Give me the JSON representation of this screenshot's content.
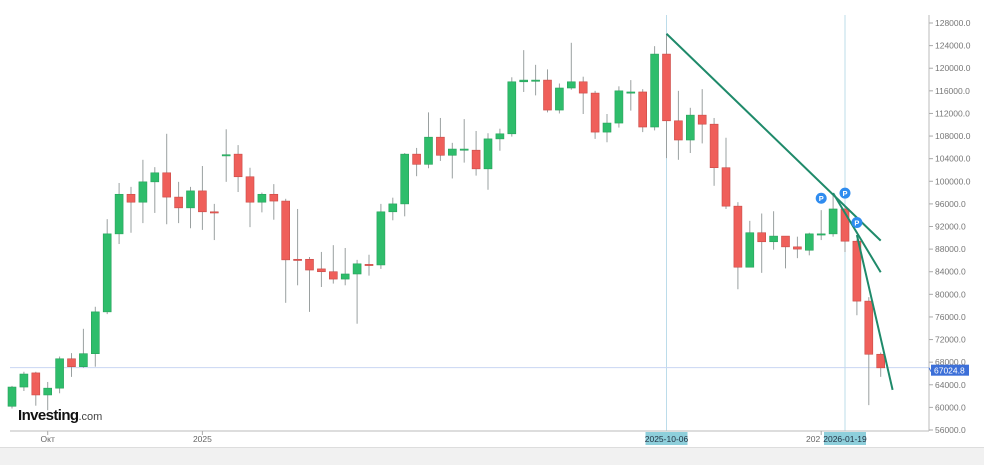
{
  "logo": {
    "brand": "Investing",
    "suffix": ".com"
  },
  "chart_data": {
    "type": "candlestick",
    "interval": "weekly",
    "ylim": [
      56000,
      128000
    ],
    "y_ticks": [
      56000,
      60000,
      64000,
      68000,
      72000,
      76000,
      80000,
      84000,
      88000,
      92000,
      96000,
      100000,
      104000,
      108000,
      112000,
      116000,
      120000,
      124000,
      128000
    ],
    "y_tick_format": "0.0",
    "last_price": {
      "value": 67024.8,
      "label": "67024.8",
      "color": "#3c6fd8"
    },
    "x_labels": [
      {
        "date": "2024-10-07",
        "text": "Окт"
      },
      {
        "date": "2025-01-06",
        "text": "2025"
      },
      {
        "date": "2026-01-05",
        "text": "202"
      }
    ],
    "crosshair_labels": [
      {
        "date": "2025-10-06",
        "text": "2025-10-06"
      },
      {
        "date": "2026-01-19",
        "text": "2026-01-19"
      }
    ],
    "colors": {
      "up": "#2ebd6b",
      "down": "#ef5f5a",
      "wick": "#9aa0a0",
      "trendline": "#1f8a6a",
      "crosshair": "#bcdcea",
      "marker": "#2f8cef"
    },
    "columns": [
      "date",
      "open",
      "high",
      "low",
      "close"
    ],
    "candles": [
      [
        "2024-09-16",
        60200,
        63800,
        59800,
        63600
      ],
      [
        "2024-09-23",
        63600,
        66300,
        62900,
        65900
      ],
      [
        "2024-09-30",
        66100,
        66300,
        60300,
        62200
      ],
      [
        "2024-10-07",
        62200,
        64500,
        59500,
        63400
      ],
      [
        "2024-10-14",
        63400,
        69000,
        62500,
        68600
      ],
      [
        "2024-10-21",
        68600,
        69600,
        65400,
        67200
      ],
      [
        "2024-10-28",
        67200,
        73900,
        67000,
        69500
      ],
      [
        "2024-11-04",
        69500,
        77800,
        67200,
        76900
      ],
      [
        "2024-11-11",
        76900,
        93300,
        76500,
        90700
      ],
      [
        "2024-11-18",
        90700,
        99700,
        88900,
        97700
      ],
      [
        "2024-11-25",
        97700,
        99000,
        90900,
        96300
      ],
      [
        "2024-12-02",
        96300,
        103800,
        92600,
        99900
      ],
      [
        "2024-12-09",
        99900,
        102500,
        94400,
        101500
      ],
      [
        "2024-12-16",
        101500,
        108400,
        92400,
        97200
      ],
      [
        "2024-12-23",
        97200,
        99900,
        92600,
        95300
      ],
      [
        "2024-12-30",
        95300,
        99000,
        91700,
        98300
      ],
      [
        "2025-01-06",
        98300,
        102700,
        91400,
        94600
      ],
      [
        "2025-01-13",
        94600,
        96000,
        89600,
        94500
      ],
      [
        "2025-01-20",
        104500,
        109200,
        99900,
        104700
      ],
      [
        "2025-01-27",
        104800,
        106400,
        98100,
        100800
      ],
      [
        "2025-02-03",
        100800,
        102400,
        91900,
        96300
      ],
      [
        "2025-02-10",
        96300,
        98000,
        94500,
        97700
      ],
      [
        "2025-02-17",
        97700,
        99500,
        93200,
        96500
      ],
      [
        "2025-02-24",
        96500,
        96900,
        78500,
        86100
      ],
      [
        "2025-03-03",
        86200,
        95100,
        81600,
        86100
      ],
      [
        "2025-03-10",
        86200,
        86600,
        76900,
        84300
      ],
      [
        "2025-03-17",
        84500,
        87500,
        81300,
        84000
      ],
      [
        "2025-03-24",
        84000,
        88700,
        81900,
        82700
      ],
      [
        "2025-03-31",
        82700,
        88200,
        81600,
        83600
      ],
      [
        "2025-04-07",
        83600,
        86100,
        74800,
        85400
      ],
      [
        "2025-04-14",
        85300,
        87000,
        83300,
        85100
      ],
      [
        "2025-04-21",
        85200,
        96000,
        84500,
        94600
      ],
      [
        "2025-04-28",
        94600,
        97100,
        93100,
        96000
      ],
      [
        "2025-05-05",
        96000,
        105000,
        93800,
        104800
      ],
      [
        "2025-05-12",
        104800,
        105900,
        100900,
        103000
      ],
      [
        "2025-05-19",
        103000,
        112200,
        102300,
        107800
      ],
      [
        "2025-05-26",
        107800,
        111200,
        103600,
        104600
      ],
      [
        "2025-06-02",
        104600,
        106800,
        100500,
        105700
      ],
      [
        "2025-06-09",
        105600,
        111000,
        103300,
        105700
      ],
      [
        "2025-06-16",
        105500,
        108900,
        101000,
        102200
      ],
      [
        "2025-06-23",
        102200,
        108500,
        98500,
        107500
      ],
      [
        "2025-06-30",
        107500,
        109300,
        105400,
        108400
      ],
      [
        "2025-07-07",
        108400,
        118400,
        107900,
        117600
      ],
      [
        "2025-07-14",
        117600,
        123200,
        115800,
        117900
      ],
      [
        "2025-07-21",
        117900,
        120600,
        115200,
        117900
      ],
      [
        "2025-07-28",
        117900,
        119800,
        112200,
        112600
      ],
      [
        "2025-08-04",
        112600,
        117300,
        112000,
        116500
      ],
      [
        "2025-08-11",
        116500,
        124500,
        116200,
        117600
      ],
      [
        "2025-08-18",
        117600,
        118500,
        111900,
        115600
      ],
      [
        "2025-08-25",
        115600,
        116000,
        107500,
        108700
      ],
      [
        "2025-09-01",
        108700,
        111900,
        106900,
        110300
      ],
      [
        "2025-09-08",
        110300,
        116800,
        109500,
        116000
      ],
      [
        "2025-09-15",
        115800,
        117900,
        112500,
        115800
      ],
      [
        "2025-09-22",
        115800,
        116300,
        108700,
        109600
      ],
      [
        "2025-09-29",
        109600,
        123900,
        109000,
        122500
      ],
      [
        "2025-10-06",
        122500,
        126100,
        104100,
        110700
      ],
      [
        "2025-10-13",
        110700,
        116000,
        103800,
        107300
      ],
      [
        "2025-10-20",
        107300,
        113000,
        105000,
        111700
      ],
      [
        "2025-10-27",
        111700,
        116300,
        106700,
        110100
      ],
      [
        "2025-11-03",
        110100,
        111200,
        99200,
        102400
      ],
      [
        "2025-11-10",
        102400,
        107700,
        95100,
        95600
      ],
      [
        "2025-11-17",
        95600,
        96300,
        80900,
        84800
      ],
      [
        "2025-11-24",
        84800,
        93000,
        84800,
        90900
      ],
      [
        "2025-12-01",
        90900,
        94300,
        83800,
        89300
      ],
      [
        "2025-12-08",
        89300,
        94700,
        87900,
        90300
      ],
      [
        "2025-12-15",
        90300,
        90300,
        84600,
        88400
      ],
      [
        "2025-12-22",
        88400,
        90200,
        86400,
        88000
      ],
      [
        "2025-12-29",
        87800,
        90900,
        86900,
        90700
      ],
      [
        "2026-01-05",
        90700,
        94900,
        89600,
        90700
      ],
      [
        "2026-01-12",
        90700,
        97900,
        90200,
        95100
      ],
      [
        "2026-01-19",
        95100,
        95600,
        87500,
        89400
      ],
      [
        "2026-01-26",
        89400,
        89700,
        76300,
        78800
      ],
      [
        "2026-02-02",
        78800,
        79500,
        60400,
        69400
      ],
      [
        "2026-02-09",
        69400,
        69700,
        65400,
        67000
      ]
    ],
    "trendlines": [
      {
        "from": [
          "2025-10-06",
          126100
        ],
        "to": [
          "2026-02-09",
          89500
        ]
      },
      {
        "from": [
          "2026-01-12",
          97900
        ],
        "to": [
          "2026-02-09",
          83900
        ]
      },
      {
        "from": [
          "2026-01-26",
          90500
        ],
        "to": [
          "2026-02-16",
          63100
        ]
      }
    ],
    "markers": [
      {
        "date": "2026-01-05",
        "price": 97000,
        "text": "P"
      },
      {
        "date": "2026-01-19",
        "price": 97900,
        "text": "P"
      },
      {
        "date": "2026-01-26",
        "price": 92700,
        "text": "P"
      }
    ]
  }
}
